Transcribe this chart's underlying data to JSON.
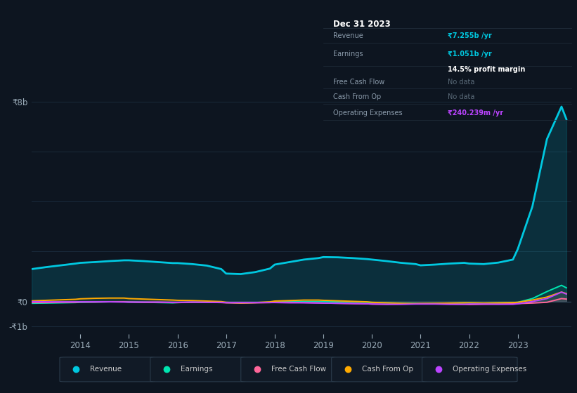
{
  "background_color": "#0d1520",
  "chart_bg_color": "#0d1520",
  "years": [
    2013.0,
    2013.3,
    2013.6,
    2013.9,
    2014.0,
    2014.3,
    2014.6,
    2014.9,
    2015.0,
    2015.3,
    2015.6,
    2015.9,
    2016.0,
    2016.3,
    2016.6,
    2016.9,
    2017.0,
    2017.3,
    2017.6,
    2017.9,
    2018.0,
    2018.3,
    2018.6,
    2018.9,
    2019.0,
    2019.3,
    2019.6,
    2019.9,
    2020.0,
    2020.3,
    2020.6,
    2020.9,
    2021.0,
    2021.3,
    2021.6,
    2021.9,
    2022.0,
    2022.3,
    2022.6,
    2022.9,
    2023.0,
    2023.3,
    2023.6,
    2023.9,
    2024.0
  ],
  "revenue": [
    1.3,
    1.38,
    1.45,
    1.52,
    1.55,
    1.58,
    1.62,
    1.65,
    1.65,
    1.62,
    1.58,
    1.54,
    1.54,
    1.5,
    1.44,
    1.3,
    1.12,
    1.1,
    1.18,
    1.32,
    1.48,
    1.58,
    1.68,
    1.74,
    1.78,
    1.77,
    1.74,
    1.7,
    1.68,
    1.62,
    1.55,
    1.5,
    1.45,
    1.48,
    1.52,
    1.55,
    1.52,
    1.5,
    1.56,
    1.68,
    2.1,
    3.8,
    6.5,
    7.8,
    7.3
  ],
  "earnings": [
    -0.07,
    -0.06,
    -0.05,
    -0.04,
    -0.03,
    -0.02,
    -0.01,
    -0.01,
    -0.02,
    -0.03,
    -0.04,
    -0.05,
    -0.04,
    -0.03,
    -0.03,
    -0.03,
    -0.04,
    -0.05,
    -0.04,
    -0.03,
    -0.02,
    0.0,
    0.0,
    0.0,
    0.0,
    -0.01,
    -0.02,
    -0.03,
    -0.04,
    -0.05,
    -0.06,
    -0.07,
    -0.08,
    -0.07,
    -0.06,
    -0.05,
    -0.05,
    -0.06,
    -0.05,
    -0.04,
    -0.03,
    0.12,
    0.4,
    0.65,
    0.55
  ],
  "free_cash_flow": [
    -0.04,
    -0.04,
    -0.03,
    -0.03,
    -0.02,
    -0.02,
    -0.01,
    -0.01,
    -0.02,
    -0.03,
    -0.03,
    -0.04,
    -0.04,
    -0.03,
    -0.03,
    -0.04,
    -0.05,
    -0.06,
    -0.05,
    -0.04,
    -0.03,
    -0.03,
    -0.04,
    -0.05,
    -0.06,
    -0.07,
    -0.08,
    -0.09,
    -0.1,
    -0.11,
    -0.1,
    -0.09,
    -0.08,
    -0.09,
    -0.1,
    -0.11,
    -0.12,
    -0.11,
    -0.1,
    -0.09,
    -0.08,
    -0.06,
    -0.03,
    0.12,
    0.1
  ],
  "cash_from_op": [
    0.03,
    0.05,
    0.07,
    0.09,
    0.11,
    0.13,
    0.14,
    0.14,
    0.12,
    0.1,
    0.08,
    0.06,
    0.05,
    0.04,
    0.02,
    0.0,
    -0.03,
    -0.05,
    -0.04,
    -0.01,
    0.02,
    0.04,
    0.06,
    0.06,
    0.05,
    0.03,
    0.01,
    -0.01,
    -0.03,
    -0.05,
    -0.07,
    -0.08,
    -0.08,
    -0.07,
    -0.06,
    -0.05,
    -0.05,
    -0.06,
    -0.05,
    -0.04,
    -0.03,
    0.06,
    0.18,
    0.38,
    0.32
  ],
  "op_expenses": [
    0.0,
    -0.01,
    -0.01,
    -0.01,
    -0.01,
    -0.01,
    -0.01,
    -0.02,
    -0.02,
    -0.02,
    -0.02,
    -0.03,
    -0.03,
    -0.02,
    -0.03,
    -0.03,
    -0.04,
    -0.04,
    -0.04,
    -0.04,
    -0.04,
    -0.05,
    -0.05,
    -0.06,
    -0.06,
    -0.07,
    -0.08,
    -0.09,
    -0.1,
    -0.11,
    -0.11,
    -0.1,
    -0.1,
    -0.1,
    -0.11,
    -0.11,
    -0.1,
    -0.1,
    -0.11,
    -0.11,
    -0.09,
    0.0,
    0.12,
    0.38,
    0.3
  ],
  "ylim": [
    -1.3,
    9.0
  ],
  "ytick_labels": [
    "-₹1b",
    "₹0",
    "₹8b"
  ],
  "ytick_vals": [
    -1.0,
    0.0,
    8.0
  ],
  "xtick_years": [
    2014,
    2015,
    2016,
    2017,
    2018,
    2019,
    2020,
    2021,
    2022,
    2023
  ],
  "revenue_color": "#00c8e0",
  "earnings_color": "#00e5b0",
  "fcf_color": "#ff6699",
  "cashop_color": "#ffaa00",
  "opex_color": "#bb44ff",
  "grid_color": "#1a2a3a",
  "zero_line_color": "#2a3f50",
  "box_bg": "#080e18",
  "box_border": "#222e3c",
  "legend_items": [
    {
      "label": "Revenue",
      "color": "#00c8e0"
    },
    {
      "label": "Earnings",
      "color": "#00e5b0"
    },
    {
      "label": "Free Cash Flow",
      "color": "#ff6699"
    },
    {
      "label": "Cash From Op",
      "color": "#ffaa00"
    },
    {
      "label": "Operating Expenses",
      "color": "#bb44ff"
    }
  ]
}
